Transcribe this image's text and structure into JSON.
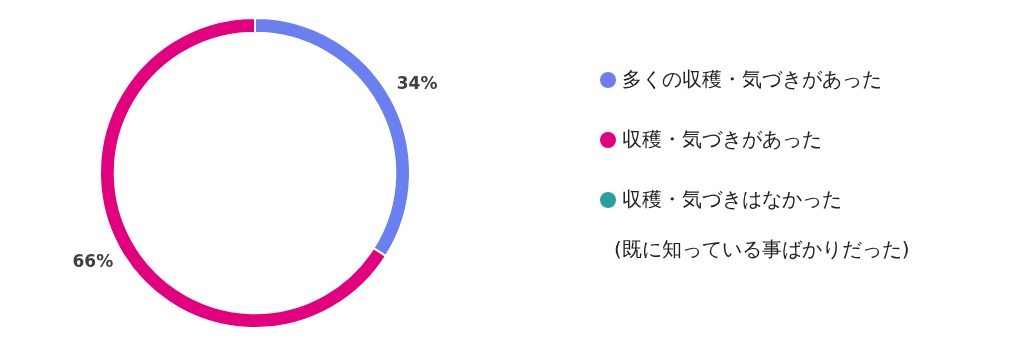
{
  "chart_data": {
    "type": "donut",
    "categories": [
      "多くの収穫・気づきがあった",
      "収穫・気づきがあった",
      "収穫・気づきはなかった\n(既に知っている事ばかりだった)"
    ],
    "values": [
      34,
      66,
      0
    ],
    "colors": [
      "#6a80f0",
      "#e3007e",
      "#2a9fa0"
    ],
    "value_labels": [
      "34%",
      "66%",
      null
    ],
    "legend": "right"
  }
}
